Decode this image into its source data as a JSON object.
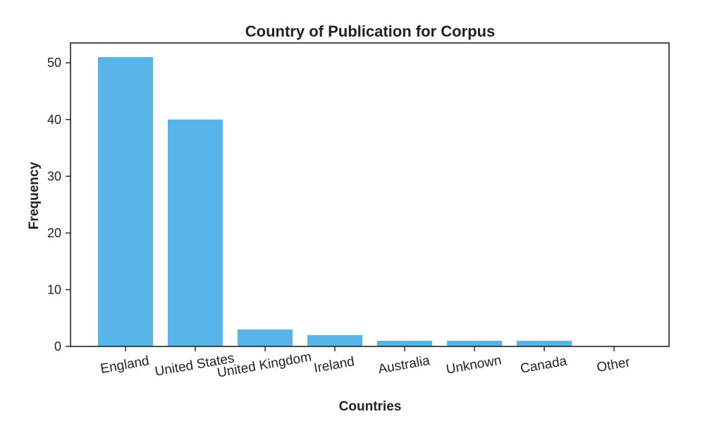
{
  "chart_data": {
    "type": "bar",
    "title": "Country of Publication for Corpus",
    "xlabel": "Countries",
    "ylabel": "Frequency",
    "categories": [
      "England",
      "United States",
      "United Kingdom",
      "Ireland",
      "Australia",
      "Unknown",
      "Canada",
      "Other"
    ],
    "values": [
      51,
      40,
      3,
      2,
      1,
      1,
      1,
      0
    ],
    "ylim": [
      0,
      53.5
    ],
    "yticks": [
      0,
      10,
      20,
      30,
      40,
      50
    ],
    "grid": false,
    "bar_color": "#56b4e9"
  }
}
